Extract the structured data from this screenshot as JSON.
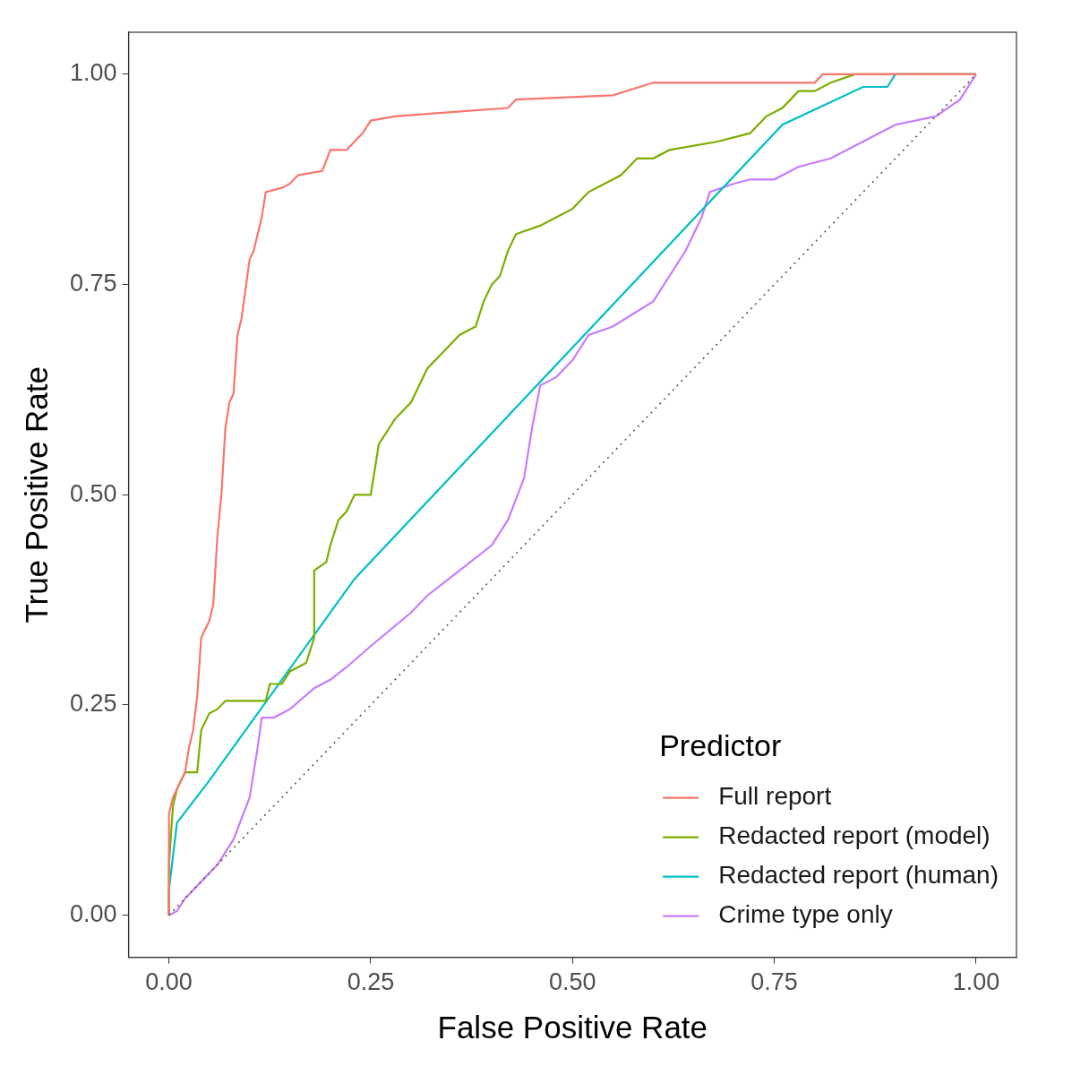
{
  "chart_data": {
    "type": "line",
    "x_label": "False Positive Rate",
    "y_label": "True Positive Rate",
    "legend_title": "Predictor",
    "legend": "lower right",
    "grid": false,
    "xlim": [
      -0.05,
      1.05
    ],
    "ylim": [
      -0.05,
      1.05
    ],
    "xticks": [
      {
        "value": 0,
        "label": "0.00"
      },
      0.25,
      {
        "value": 0.5,
        "label": "0.50"
      },
      0.75,
      {
        "value": 1,
        "label": "1.00"
      }
    ],
    "yticks": [
      {
        "value": 0,
        "label": "0.00"
      },
      0.25,
      {
        "value": 0.5,
        "label": "0.50"
      },
      0.75,
      {
        "value": 1,
        "label": "1.00"
      }
    ],
    "series": [
      {
        "name": "Full report",
        "color": "#F8766D",
        "x": [
          0,
          0,
          0.005,
          0.01,
          0.02,
          0.025,
          0.03,
          0.035,
          0.04,
          0.045,
          0.05,
          0.055,
          0.06,
          0.065,
          0.07,
          0.075,
          0.08,
          0.085,
          0.09,
          0.1,
          0.105,
          0.11,
          0.115,
          0.12,
          0.14,
          0.15,
          0.16,
          0.19,
          0.2,
          0.22,
          0.23,
          0.24,
          0.25,
          0.28,
          0.35,
          0.42,
          0.43,
          0.55,
          0.6,
          0.8,
          0.81,
          1
        ],
        "values": [
          0,
          0.12,
          0.14,
          0.15,
          0.17,
          0.2,
          0.22,
          0.26,
          0.33,
          0.34,
          0.35,
          0.37,
          0.45,
          0.5,
          0.58,
          0.61,
          0.62,
          0.69,
          0.71,
          0.78,
          0.79,
          0.81,
          0.83,
          0.86,
          0.865,
          0.87,
          0.88,
          0.885,
          0.91,
          0.91,
          0.92,
          0.93,
          0.945,
          0.95,
          0.955,
          0.96,
          0.97,
          0.975,
          0.99,
          0.99,
          1,
          1
        ]
      },
      {
        "name": "Redacted report (model)",
        "color": "#7CAE00",
        "x": [
          0,
          0,
          0.005,
          0.01,
          0.02,
          0.035,
          0.04,
          0.05,
          0.06,
          0.07,
          0.12,
          0.125,
          0.14,
          0.15,
          0.17,
          0.18,
          0.18,
          0.195,
          0.2,
          0.21,
          0.22,
          0.23,
          0.25,
          0.26,
          0.28,
          0.3,
          0.31,
          0.32,
          0.34,
          0.36,
          0.38,
          0.39,
          0.4,
          0.41,
          0.42,
          0.43,
          0.46,
          0.48,
          0.5,
          0.52,
          0.54,
          0.56,
          0.58,
          0.6,
          0.62,
          0.68,
          0.72,
          0.74,
          0.76,
          0.78,
          0.8,
          0.82,
          0.85,
          1
        ],
        "values": [
          0,
          0.06,
          0.13,
          0.15,
          0.17,
          0.17,
          0.22,
          0.24,
          0.245,
          0.255,
          0.255,
          0.275,
          0.275,
          0.29,
          0.3,
          0.33,
          0.41,
          0.42,
          0.44,
          0.47,
          0.48,
          0.5,
          0.5,
          0.56,
          0.59,
          0.61,
          0.63,
          0.65,
          0.67,
          0.69,
          0.7,
          0.73,
          0.75,
          0.76,
          0.79,
          0.81,
          0.82,
          0.83,
          0.84,
          0.86,
          0.87,
          0.88,
          0.9,
          0.9,
          0.91,
          0.92,
          0.93,
          0.95,
          0.96,
          0.98,
          0.98,
          0.99,
          1,
          1
        ]
      },
      {
        "name": "Redacted report (human)",
        "color": "#00BFC4",
        "x": [
          0,
          0,
          0.01,
          0.05,
          0.23,
          0.76,
          0.86,
          0.89,
          0.9,
          1
        ],
        "values": [
          0,
          0.03,
          0.11,
          0.16,
          0.4,
          0.94,
          0.985,
          0.985,
          1,
          1
        ]
      },
      {
        "name": "Crime type only",
        "color": "#C77CFF",
        "x": [
          0,
          0.01,
          0.02,
          0.04,
          0.06,
          0.08,
          0.1,
          0.11,
          0.115,
          0.13,
          0.15,
          0.18,
          0.2,
          0.22,
          0.25,
          0.3,
          0.32,
          0.36,
          0.4,
          0.42,
          0.44,
          0.45,
          0.46,
          0.48,
          0.5,
          0.52,
          0.55,
          0.6,
          0.62,
          0.64,
          0.66,
          0.67,
          0.7,
          0.72,
          0.75,
          0.78,
          0.82,
          0.86,
          0.9,
          0.95,
          0.98,
          1
        ],
        "values": [
          0,
          0.005,
          0.02,
          0.04,
          0.06,
          0.09,
          0.14,
          0.2,
          0.235,
          0.235,
          0.245,
          0.27,
          0.28,
          0.295,
          0.32,
          0.36,
          0.38,
          0.41,
          0.44,
          0.47,
          0.52,
          0.58,
          0.63,
          0.64,
          0.66,
          0.69,
          0.7,
          0.73,
          0.76,
          0.79,
          0.83,
          0.86,
          0.87,
          0.875,
          0.875,
          0.89,
          0.9,
          0.92,
          0.94,
          0.95,
          0.97,
          1
        ]
      }
    ],
    "reference_line": {
      "x": [
        0,
        1
      ],
      "values": [
        0,
        1
      ],
      "color": "#555555",
      "line_style": "dotted"
    }
  }
}
